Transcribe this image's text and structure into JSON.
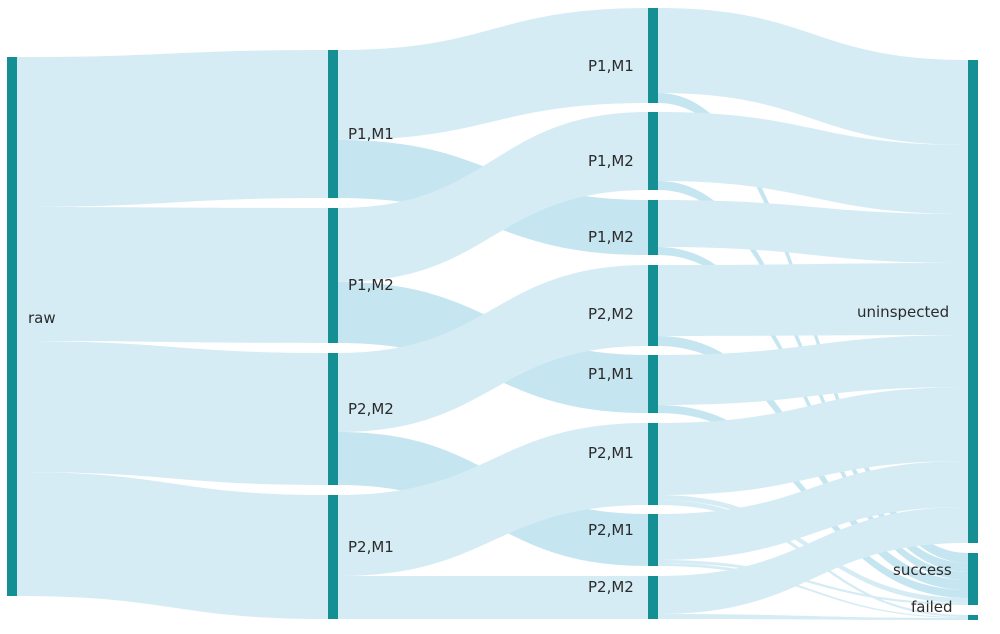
{
  "colors": {
    "node": "#148f94",
    "link": "#d6ecf5",
    "link_highlight": "#bfe2ef",
    "text": "#2b2b2b",
    "background": "#ffffff"
  },
  "diagram": {
    "type": "sankey",
    "nodes": [
      {
        "id": "n_raw",
        "label": "raw"
      },
      {
        "id": "c1_a",
        "label": "P1,M1"
      },
      {
        "id": "c1_b",
        "label": "P1,M2"
      },
      {
        "id": "c1_c",
        "label": "P2,M2"
      },
      {
        "id": "c1_d",
        "label": "P2,M1"
      },
      {
        "id": "c2_a",
        "label": "P1,M1"
      },
      {
        "id": "c2_b",
        "label": "P1,M2"
      },
      {
        "id": "c2_c",
        "label": "P1,M2"
      },
      {
        "id": "c2_d",
        "label": "P2,M2"
      },
      {
        "id": "c2_e",
        "label": "P1,M1"
      },
      {
        "id": "c2_f",
        "label": "P2,M1"
      },
      {
        "id": "c2_g",
        "label": "P2,M1"
      },
      {
        "id": "c2_h",
        "label": "P2,M2"
      },
      {
        "id": "n_uninspected",
        "label": "uninspected"
      },
      {
        "id": "n_success",
        "label": "success"
      },
      {
        "id": "n_failed",
        "label": "failed"
      }
    ]
  }
}
